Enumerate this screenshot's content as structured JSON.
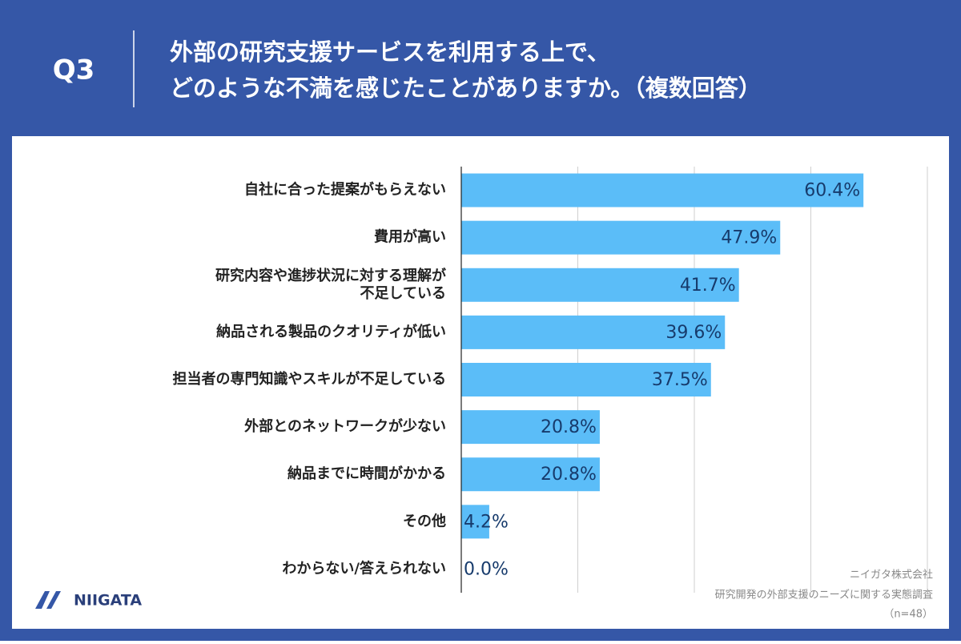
{
  "header": {
    "question": "Q3",
    "title_lines": [
      "外部の研究支援サービスを利用する上で、",
      "どのような不満を感じたことがありますか。（複数回答）"
    ]
  },
  "chart_data": {
    "type": "bar",
    "orientation": "horizontal",
    "categories": [
      "自社に合った提案がもらえない",
      "費用が高い",
      "研究内容や進捗状況に対する理解が\n不足している",
      "納品される製品のクオリティが低い",
      "担当者の専門知識やスキルが不足している",
      "外部とのネットワークが少ない",
      "納品までに時間がかかる",
      "その他",
      "わからない/答えられない"
    ],
    "values": [
      60.4,
      47.9,
      41.7,
      39.6,
      37.5,
      20.8,
      20.8,
      4.2,
      0.0
    ],
    "value_labels": [
      "60.4%",
      "47.9%",
      "41.7%",
      "39.6%",
      "37.5%",
      "20.8%",
      "20.8%",
      "4.2%",
      "0.0%"
    ],
    "color": "#5bbdf8",
    "xlim": [
      0,
      70
    ],
    "xticks": [
      0,
      17.5,
      35,
      52.5,
      70
    ],
    "grid": true
  },
  "footer": {
    "logo": "NIIGATA",
    "source_lines": [
      "ニイガタ株式会社",
      "研究開発の外部支援のニーズに関する実態調査",
      "（n=48）"
    ]
  }
}
